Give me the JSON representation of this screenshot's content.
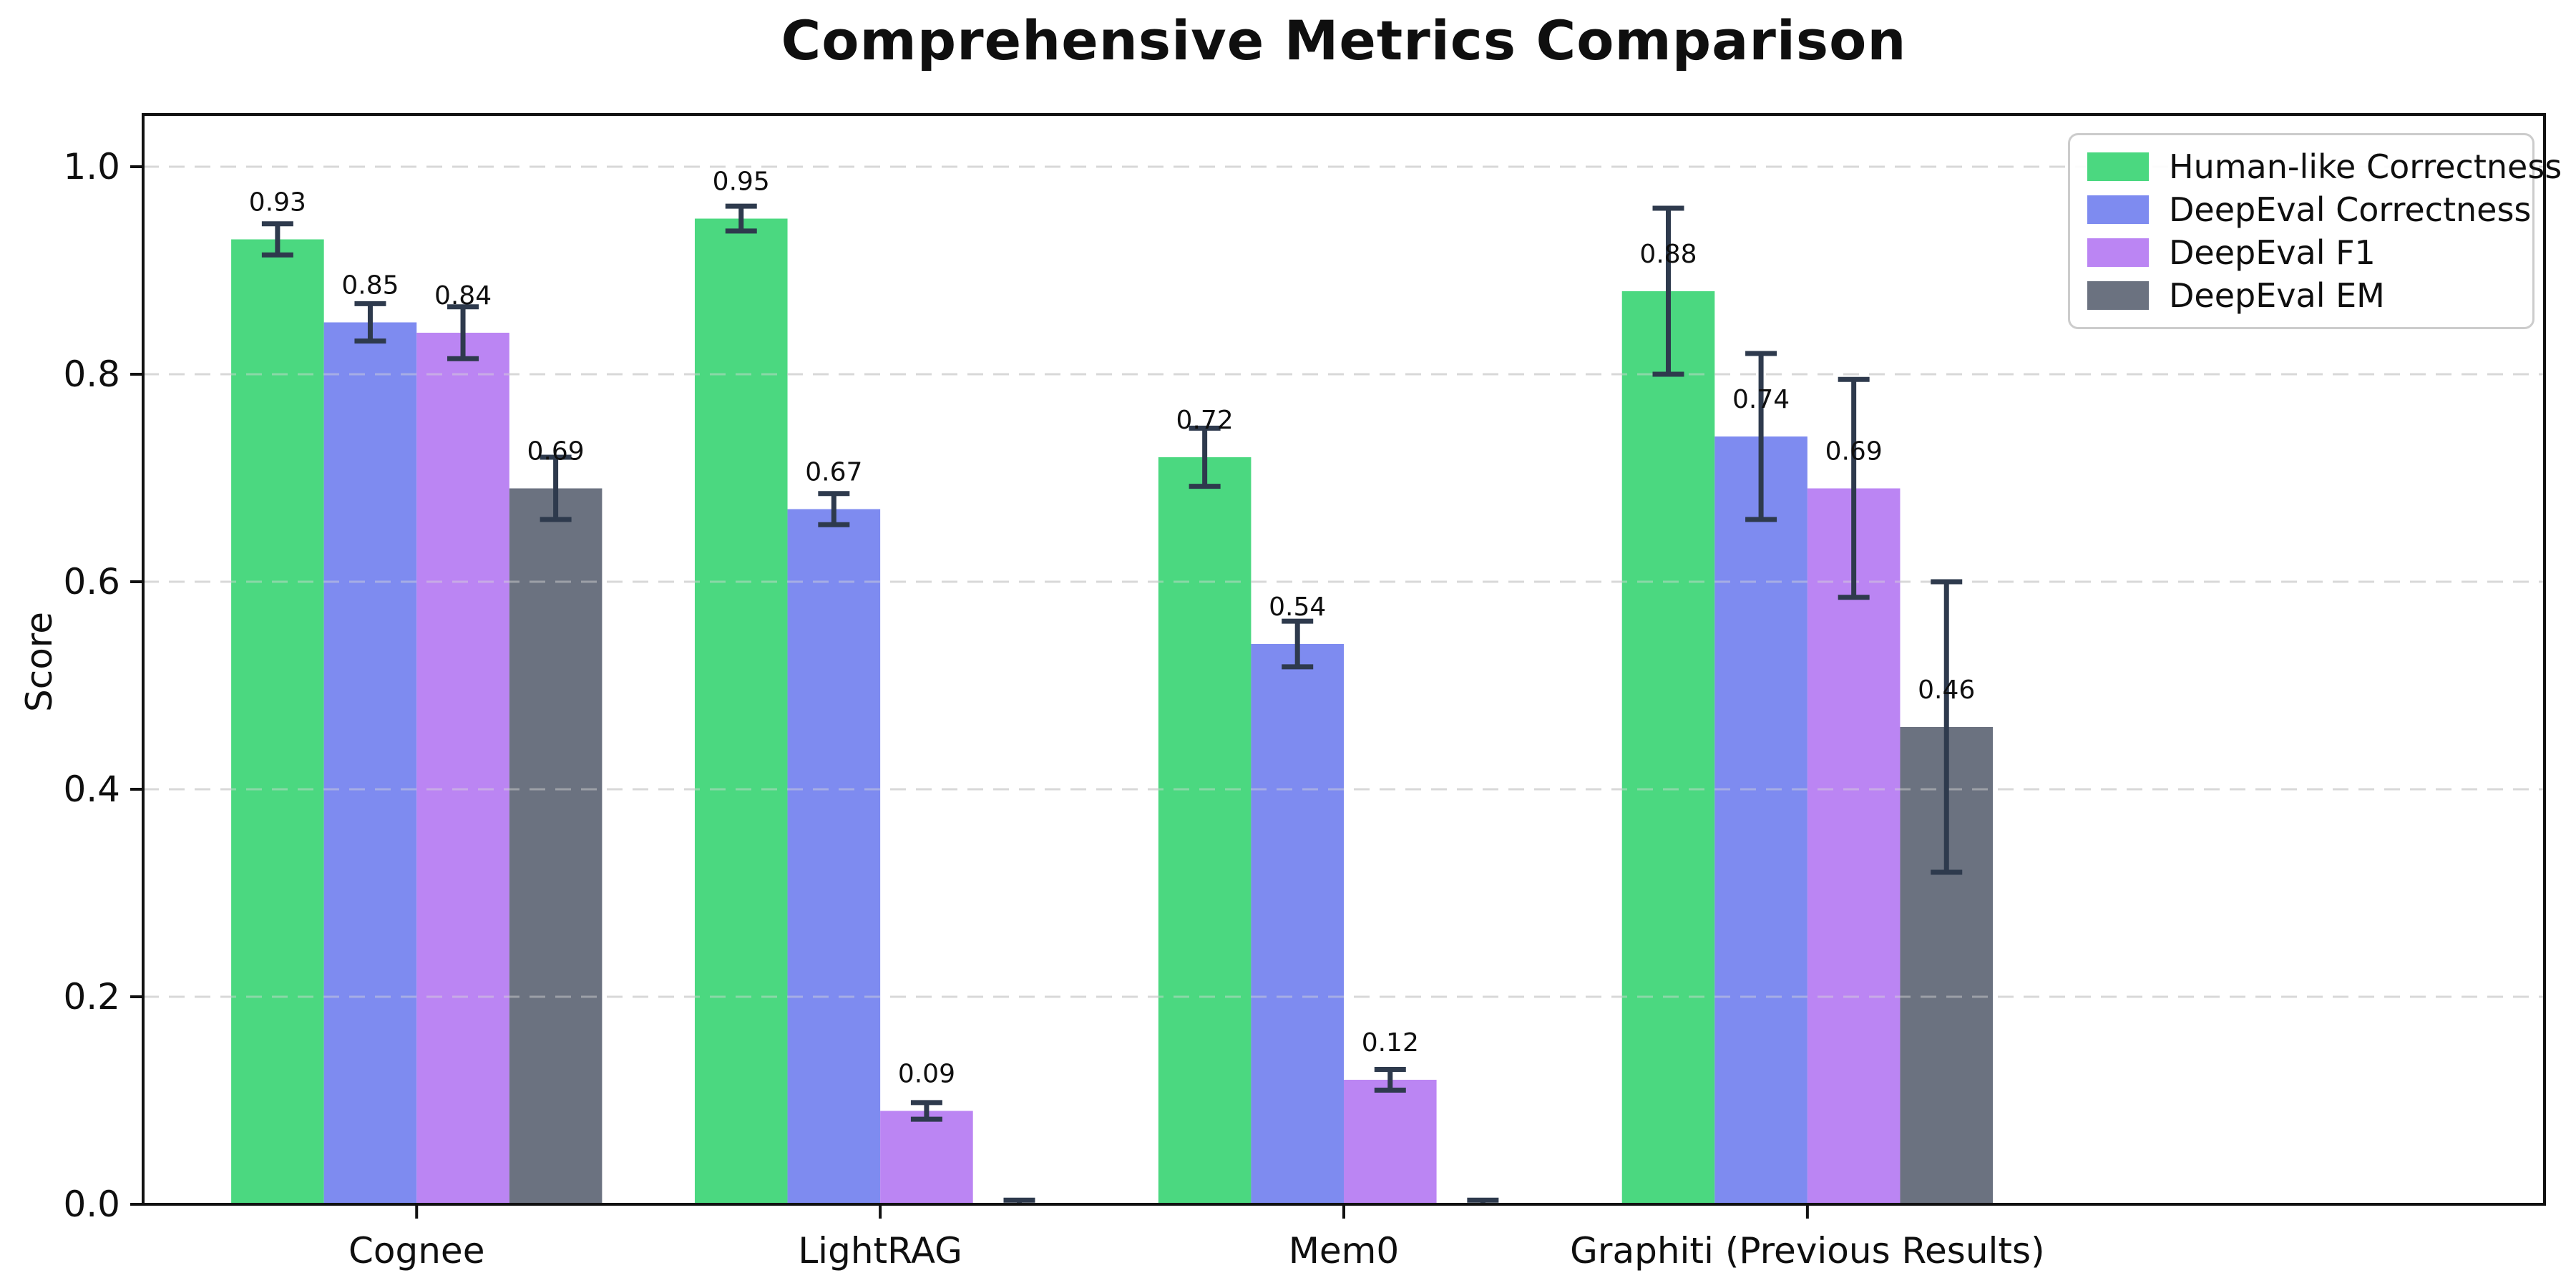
{
  "chart_data": {
    "type": "bar",
    "title": "Comprehensive Metrics Comparison",
    "ylabel": "Score",
    "xlabel": "",
    "categories": [
      "Cognee",
      "LightRAG",
      "Mem0",
      "Graphiti (Previous Results)"
    ],
    "series": [
      {
        "name": "Human-like Correctness",
        "color": "#4bd880",
        "values": [
          0.93,
          0.95,
          0.72,
          0.88
        ],
        "errors": [
          0.015,
          0.012,
          0.028,
          0.08
        ],
        "bar_labels": [
          "0.93",
          "0.95",
          "0.72",
          "0.88"
        ]
      },
      {
        "name": "DeepEval Correctness",
        "color": "#7e8bf0",
        "values": [
          0.85,
          0.67,
          0.54,
          0.74
        ],
        "errors": [
          0.018,
          0.015,
          0.022,
          0.08
        ],
        "bar_labels": [
          "0.85",
          "0.67",
          "0.54",
          "0.74"
        ]
      },
      {
        "name": "DeepEval F1",
        "color": "#bb85f3",
        "values": [
          0.84,
          0.09,
          0.12,
          0.69
        ],
        "errors": [
          0.025,
          0.008,
          0.01,
          0.105
        ],
        "bar_labels": [
          "0.84",
          "0.09",
          "0.12",
          "0.69"
        ]
      },
      {
        "name": "DeepEval EM",
        "color": "#6b7280",
        "values": [
          0.69,
          0.0,
          0.0,
          0.46
        ],
        "errors": [
          0.03,
          0.004,
          0.004,
          0.14
        ],
        "bar_labels": [
          "0.69",
          "",
          "",
          "0.46"
        ]
      }
    ],
    "yticks": [
      0.0,
      0.2,
      0.4,
      0.6,
      0.8,
      1.0
    ],
    "ytick_labels": [
      "0.0",
      "0.2",
      "0.4",
      "0.6",
      "0.8",
      "1.0"
    ],
    "ylim": [
      0,
      1.05
    ],
    "grid": "horizontal-dashed",
    "legend_position": "upper-right",
    "colors": {
      "grid": "#d8d8d8",
      "error_bar": "#2e3a4d",
      "axis": "#111111",
      "text": "#0f0f0f"
    }
  }
}
